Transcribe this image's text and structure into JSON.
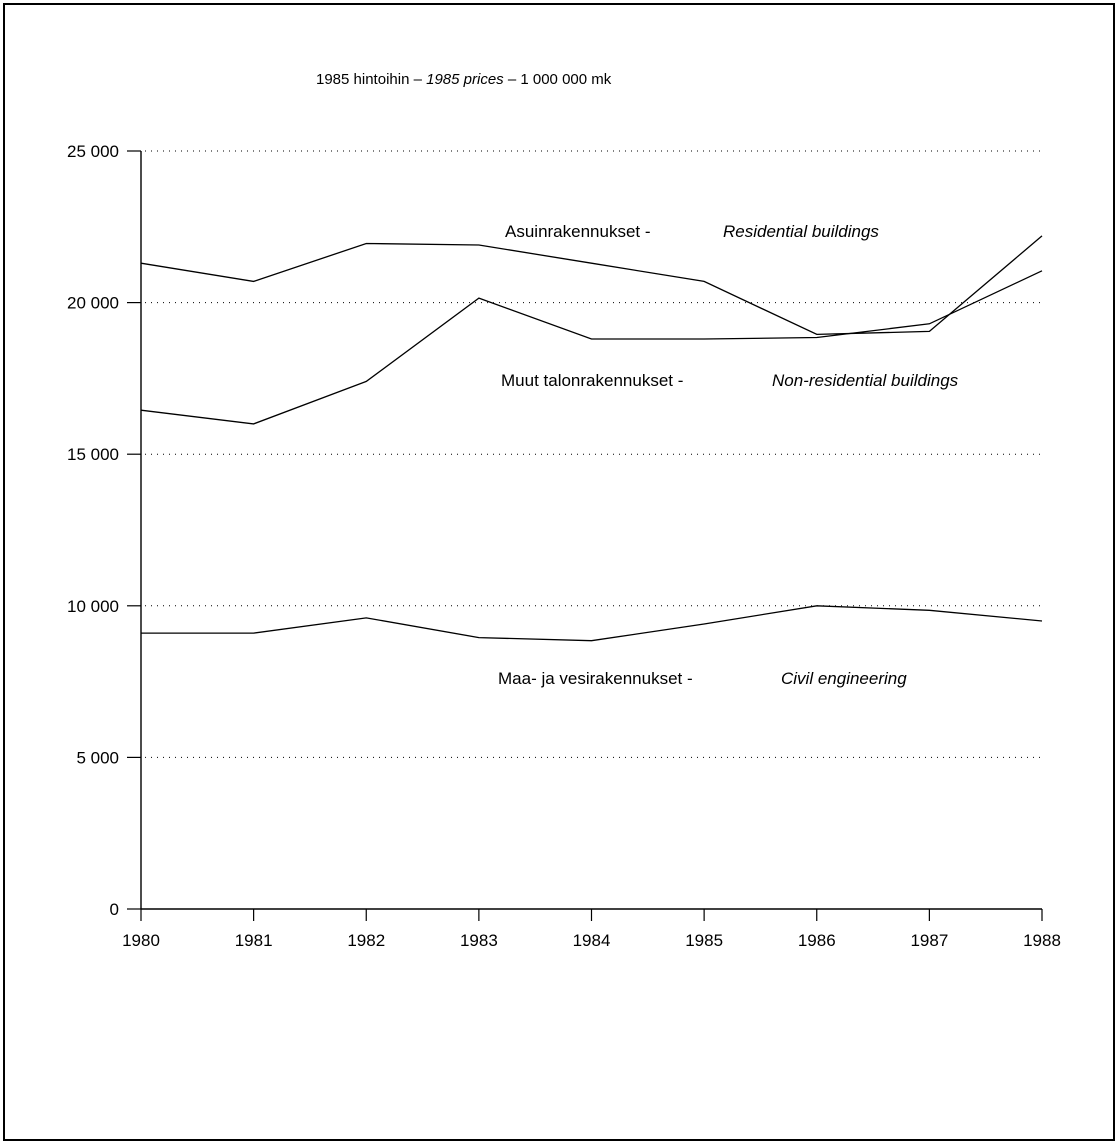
{
  "chart_data": {
    "type": "line",
    "title": {
      "fi": "1985 hintoihin",
      "sep1": " – ",
      "en": "1985 prices",
      "sep2": " – ",
      "unit": "1 000 000 mk"
    },
    "x": [
      1980,
      1981,
      1982,
      1983,
      1984,
      1985,
      1986,
      1987,
      1988
    ],
    "x_tick_labels": [
      "1980",
      "1981",
      "1982",
      "1983",
      "1984",
      "1985",
      "1986",
      "1987",
      "1988"
    ],
    "y_ticks": [
      0,
      5000,
      10000,
      15000,
      20000,
      25000
    ],
    "y_tick_labels": [
      "0",
      "5 000",
      "10 000",
      "15 000",
      "20 000",
      "25 000"
    ],
    "ylim": [
      0,
      25000
    ],
    "xlim": [
      1980,
      1988
    ],
    "grid": "horizontal dotted",
    "series": [
      {
        "name_fi": "Asuinrakennukset",
        "separator": " - ",
        "name_en": "Residential buildings",
        "values": [
          21300,
          20700,
          21950,
          21900,
          21300,
          20700,
          18950,
          19050,
          22200
        ]
      },
      {
        "name_fi": "Muut talonrakennukset",
        "separator": " - ",
        "name_en": "Non-residential buildings",
        "values": [
          16450,
          16000,
          17400,
          20150,
          18800,
          18800,
          18850,
          19300,
          21050
        ]
      },
      {
        "name_fi": "Maa- ja vesirakennukset",
        "separator": " - ",
        "name_en": "Civil engineering",
        "values": [
          9100,
          9100,
          9600,
          8950,
          8850,
          9400,
          10000,
          9850,
          9500
        ]
      }
    ]
  }
}
